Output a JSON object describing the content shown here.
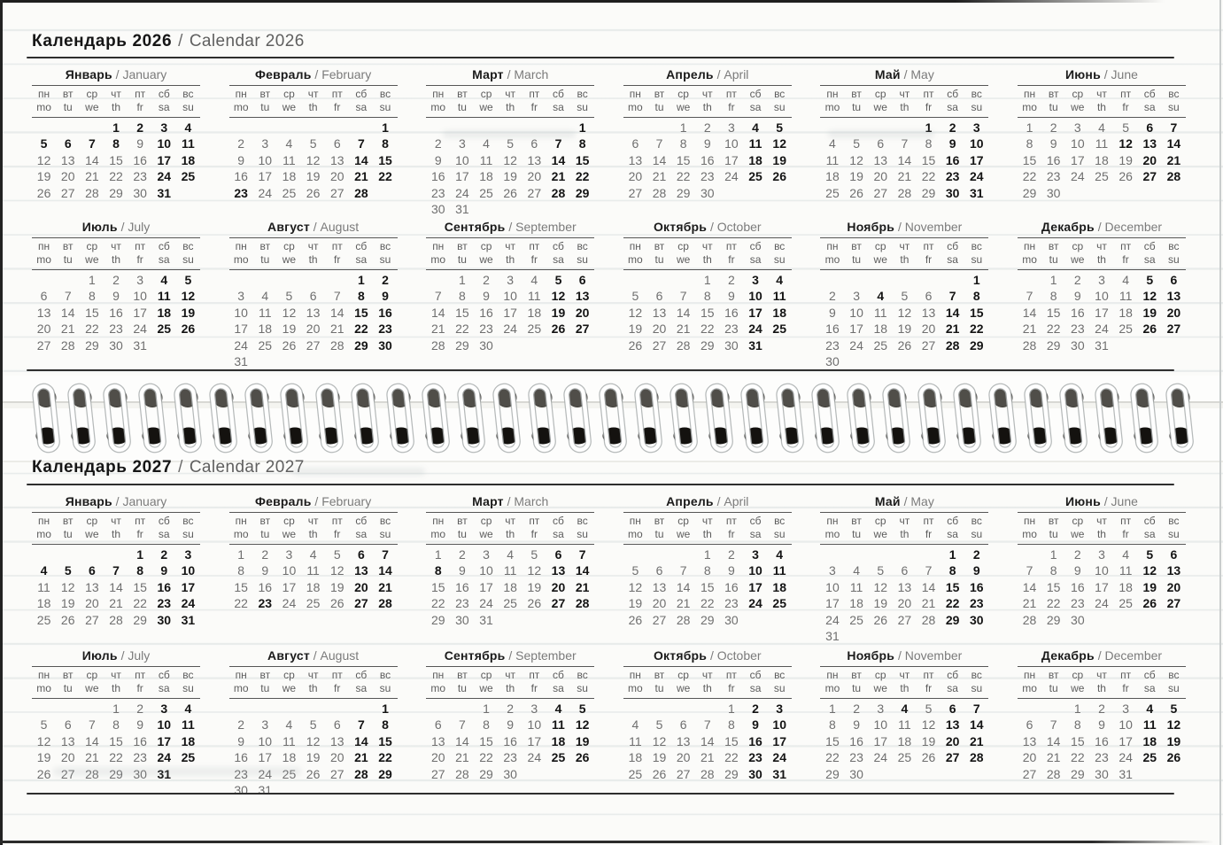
{
  "calendar": {
    "separator": "/",
    "weekdays_ru": [
      "пн",
      "вт",
      "ср",
      "чт",
      "пт",
      "сб",
      "вс"
    ],
    "weekdays_en": [
      "mo",
      "tu",
      "we",
      "th",
      "fr",
      "sa",
      "su"
    ],
    "colors": {
      "date_regular": "#6f6f6f",
      "date_weekend_holiday": "#141414",
      "rule": "#2e2e2e",
      "paper": "#fbfbf9"
    },
    "years": [
      {
        "year": "2026",
        "title_ru": "Календарь 2026",
        "title_en": "Calendar 2026",
        "months": [
          {
            "ru": "Январь",
            "en": "January",
            "start": 3,
            "days": 31,
            "bold": [
              1,
              2,
              3,
              4,
              5,
              6,
              7,
              8,
              10,
              11,
              17,
              18,
              24,
              25,
              31
            ]
          },
          {
            "ru": "Февраль",
            "en": "February",
            "start": 6,
            "days": 28,
            "bold": [
              1,
              7,
              8,
              14,
              15,
              21,
              22,
              23,
              28
            ]
          },
          {
            "ru": "Март",
            "en": "March",
            "start": 6,
            "days": 31,
            "bold": [
              1,
              7,
              8,
              14,
              15,
              21,
              22,
              28,
              29
            ]
          },
          {
            "ru": "Апрель",
            "en": "April",
            "start": 2,
            "days": 30,
            "bold": [
              4,
              5,
              11,
              12,
              18,
              19,
              25,
              26
            ]
          },
          {
            "ru": "Май",
            "en": "May",
            "start": 4,
            "days": 31,
            "bold": [
              1,
              2,
              3,
              9,
              10,
              16,
              17,
              23,
              24,
              30,
              31
            ]
          },
          {
            "ru": "Июнь",
            "en": "June",
            "start": 0,
            "days": 30,
            "bold": [
              6,
              7,
              12,
              13,
              14,
              20,
              21,
              27,
              28
            ]
          },
          {
            "ru": "Июль",
            "en": "July",
            "start": 2,
            "days": 31,
            "bold": [
              4,
              5,
              11,
              12,
              18,
              19,
              25,
              26
            ]
          },
          {
            "ru": "Август",
            "en": "August",
            "start": 5,
            "days": 31,
            "bold": [
              1,
              2,
              8,
              9,
              15,
              16,
              22,
              23,
              29,
              30
            ]
          },
          {
            "ru": "Сентябрь",
            "en": "September",
            "start": 1,
            "days": 30,
            "bold": [
              5,
              6,
              12,
              13,
              19,
              20,
              26,
              27
            ]
          },
          {
            "ru": "Октябрь",
            "en": "October",
            "start": 3,
            "days": 31,
            "bold": [
              3,
              4,
              10,
              11,
              17,
              18,
              24,
              25,
              31
            ]
          },
          {
            "ru": "Ноябрь",
            "en": "November",
            "start": 6,
            "days": 30,
            "bold": [
              1,
              4,
              7,
              8,
              14,
              15,
              21,
              22,
              28,
              29
            ]
          },
          {
            "ru": "Декабрь",
            "en": "December",
            "start": 1,
            "days": 31,
            "bold": [
              5,
              6,
              12,
              13,
              19,
              20,
              26,
              27
            ]
          }
        ]
      },
      {
        "year": "2027",
        "title_ru": "Календарь 2027",
        "title_en": "Calendar 2027",
        "months": [
          {
            "ru": "Январь",
            "en": "January",
            "start": 4,
            "days": 31,
            "bold": [
              1,
              2,
              3,
              4,
              5,
              6,
              7,
              8,
              9,
              10,
              16,
              17,
              23,
              24,
              30,
              31
            ]
          },
          {
            "ru": "Февраль",
            "en": "February",
            "start": 0,
            "days": 28,
            "bold": [
              6,
              7,
              13,
              14,
              20,
              21,
              23,
              27,
              28
            ]
          },
          {
            "ru": "Март",
            "en": "March",
            "start": 0,
            "days": 31,
            "bold": [
              6,
              7,
              8,
              13,
              14,
              20,
              21,
              27,
              28
            ]
          },
          {
            "ru": "Апрель",
            "en": "April",
            "start": 3,
            "days": 30,
            "bold": [
              3,
              4,
              10,
              11,
              17,
              18,
              24,
              25
            ]
          },
          {
            "ru": "Май",
            "en": "May",
            "start": 5,
            "days": 31,
            "bold": [
              1,
              2,
              8,
              9,
              15,
              16,
              22,
              23,
              29,
              30
            ]
          },
          {
            "ru": "Июнь",
            "en": "June",
            "start": 1,
            "days": 30,
            "bold": [
              5,
              6,
              12,
              13,
              19,
              20,
              26,
              27
            ]
          },
          {
            "ru": "Июль",
            "en": "July",
            "start": 3,
            "days": 31,
            "bold": [
              3,
              4,
              10,
              11,
              17,
              18,
              24,
              25,
              31
            ]
          },
          {
            "ru": "Август",
            "en": "August",
            "start": 6,
            "days": 31,
            "bold": [
              1,
              7,
              8,
              14,
              15,
              21,
              22,
              28,
              29
            ]
          },
          {
            "ru": "Сентябрь",
            "en": "September",
            "start": 2,
            "days": 30,
            "bold": [
              4,
              5,
              11,
              12,
              18,
              19,
              25,
              26
            ]
          },
          {
            "ru": "Октябрь",
            "en": "October",
            "start": 4,
            "days": 31,
            "bold": [
              2,
              3,
              9,
              10,
              16,
              17,
              23,
              24,
              30,
              31
            ]
          },
          {
            "ru": "Ноябрь",
            "en": "November",
            "start": 0,
            "days": 30,
            "bold": [
              4,
              6,
              7,
              13,
              14,
              20,
              21,
              27,
              28
            ]
          },
          {
            "ru": "Декабрь",
            "en": "December",
            "start": 2,
            "days": 31,
            "bold": [
              4,
              5,
              11,
              12,
              18,
              19,
              25,
              26
            ]
          }
        ]
      }
    ]
  }
}
